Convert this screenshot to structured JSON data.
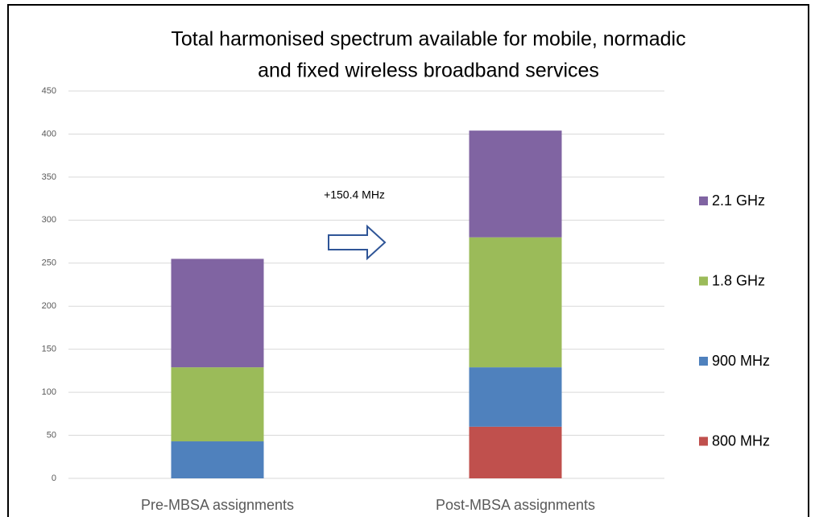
{
  "chart_data": {
    "type": "stacked_bar",
    "title": [
      "Total harmonised spectrum available for mobile, normadic",
      "and fixed wireless broadband services"
    ],
    "annotation": "+150.4 MHz",
    "categories": [
      "Pre-MBSA assignments",
      "Post-MBSA assignments"
    ],
    "series": [
      {
        "name": "800 MHz",
        "color": "#c0504d",
        "values": [
          0,
          60
        ]
      },
      {
        "name": "900 MHz",
        "color": "#4f81bd",
        "values": [
          43,
          69
        ]
      },
      {
        "name": "1.8 GHz",
        "color": "#9bbb59",
        "values": [
          86,
          151
        ]
      },
      {
        "name": "2.1 GHz",
        "color": "#8064a2",
        "values": [
          126,
          124
        ]
      }
    ],
    "ylim": [
      0,
      450
    ],
    "yticks": [
      0,
      50,
      100,
      150,
      200,
      250,
      300,
      350,
      400,
      450
    ],
    "grid": true,
    "legend": "right"
  }
}
